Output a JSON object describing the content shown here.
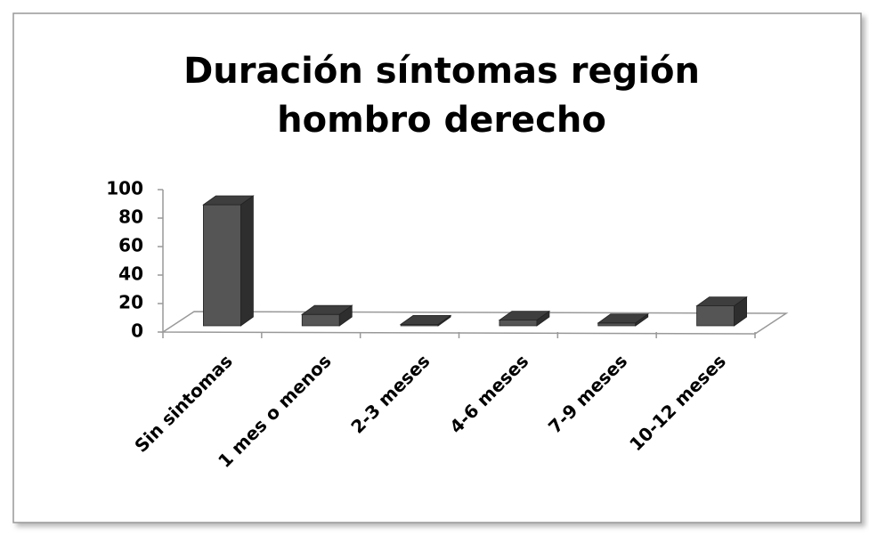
{
  "chart_data": {
    "type": "bar3d",
    "title": [
      "Duración síntomas región",
      "hombro derecho"
    ],
    "categories": [
      "Sin sintomas",
      "1 mes o menos",
      "2-3 meses",
      "4-6 meses",
      "7-9 meses",
      "10-12 meses"
    ],
    "values": [
      85,
      8,
      1,
      4,
      2,
      14
    ],
    "color": "#555555",
    "ylim": [
      0,
      100
    ],
    "yticks": [
      0,
      20,
      40,
      60,
      80,
      100
    ]
  }
}
